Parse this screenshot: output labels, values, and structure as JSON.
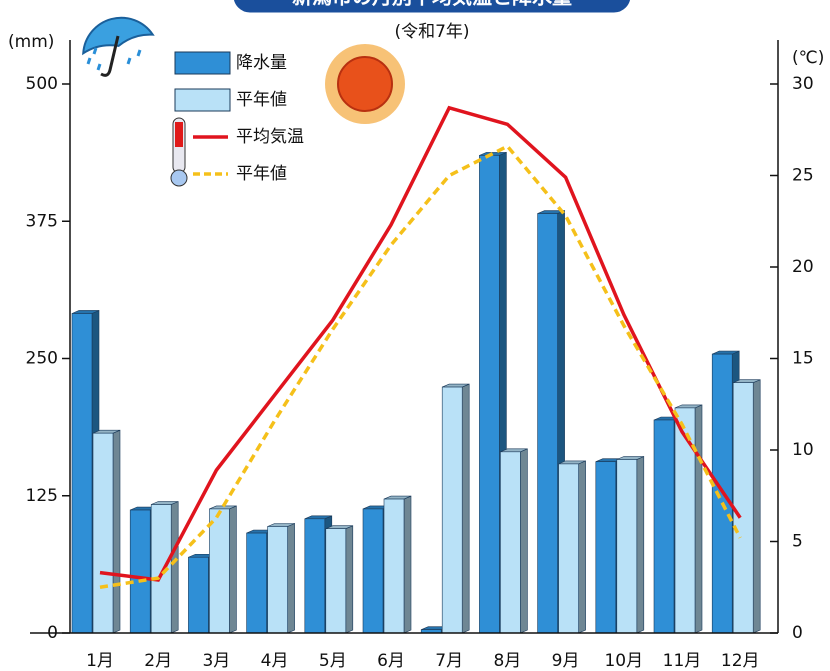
{
  "chart_data": {
    "type": "bar",
    "title": "新潟市の月別平均気温と降水量",
    "subtitle": "(令和7年)",
    "y_label": "(mm)",
    "y2_label": "(℃)",
    "categories": [
      "1月",
      "2月",
      "3月",
      "4月",
      "5月",
      "6月",
      "7月",
      "8月",
      "9月",
      "10月",
      "11月",
      "12月"
    ],
    "ylim": [
      0,
      500
    ],
    "yticks": [
      0,
      125,
      250,
      375,
      500
    ],
    "y2lim": [
      0,
      30
    ],
    "y2ticks": [
      0,
      5,
      10,
      15,
      20,
      25,
      30
    ],
    "legend": "top-left",
    "series": [
      {
        "name": "降水量",
        "type": "bar",
        "color": "#2f8fd6",
        "values": [
          291,
          112,
          69,
          91,
          104,
          113,
          3,
          435,
          382,
          156,
          194,
          254
        ]
      },
      {
        "name": "平年値",
        "type": "bar",
        "color": "#b9e1f7",
        "values": [
          182,
          117,
          113,
          97,
          95,
          122,
          224,
          165,
          154,
          158,
          205,
          228
        ]
      },
      {
        "name": "平均気温",
        "type": "line",
        "axis": "y2",
        "color": "#e0141e",
        "dashed": false,
        "values": [
          3.3,
          2.9,
          8.9,
          13.0,
          17.1,
          22.3,
          28.7,
          27.8,
          24.9,
          17.4,
          11.0,
          6.3
        ]
      },
      {
        "name": "平年値",
        "type": "line",
        "axis": "y2",
        "color": "#f5c01a",
        "dashed": true,
        "values": [
          2.5,
          3.0,
          6.3,
          11.6,
          16.6,
          21.2,
          25.0,
          26.6,
          22.8,
          16.8,
          11.4,
          5.2
        ]
      }
    ]
  }
}
